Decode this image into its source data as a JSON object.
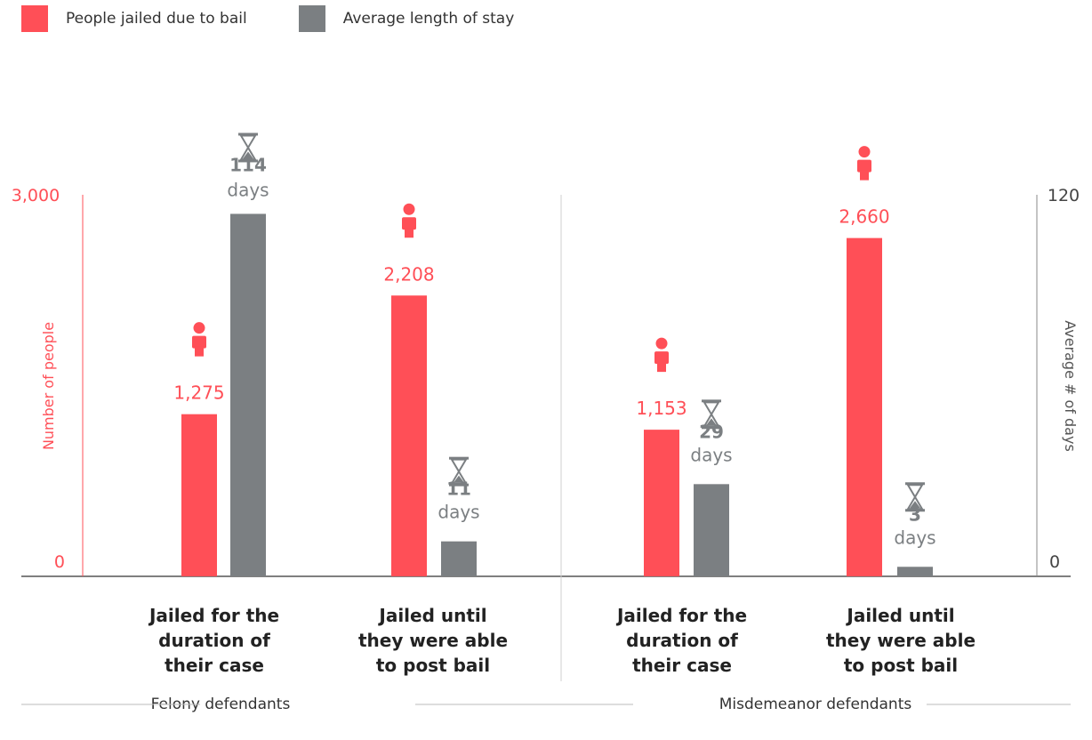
{
  "colors": {
    "people": "#ff4f57",
    "days": "#7b7f82",
    "axis": "#333333",
    "divider": "#cfcfcf"
  },
  "legend": {
    "people": "People jailed due to bail",
    "days": "Average length of stay"
  },
  "chart_data": {
    "type": "bar",
    "y_left": {
      "label": "Number of people",
      "min": 0,
      "max": 3000,
      "ticks": [
        "0",
        "3,000"
      ]
    },
    "y_right": {
      "label": "Average # of days",
      "min": 0,
      "max": 120,
      "ticks": [
        "0",
        "120"
      ]
    },
    "groups": [
      {
        "name": "Felony defendants",
        "categories": [
          {
            "label": [
              "Jailed for the",
              "duration of",
              "their case"
            ],
            "people": 1275,
            "people_label": "1,275",
            "days": 114,
            "days_label": "114"
          },
          {
            "label": [
              "Jailed until",
              "they were able",
              "to post bail"
            ],
            "people": 2208,
            "people_label": "2,208",
            "days": 11,
            "days_label": "11"
          }
        ]
      },
      {
        "name": "Misdemeanor defendants",
        "categories": [
          {
            "label": [
              "Jailed for the",
              "duration of",
              "their case"
            ],
            "people": 1153,
            "people_label": "1,153",
            "days": 29,
            "days_label": "29"
          },
          {
            "label": [
              "Jailed until",
              "they were able",
              "to post bail"
            ],
            "people": 2660,
            "people_label": "2,660",
            "days": 3,
            "days_label": "3"
          }
        ]
      }
    ],
    "days_unit": "days"
  }
}
